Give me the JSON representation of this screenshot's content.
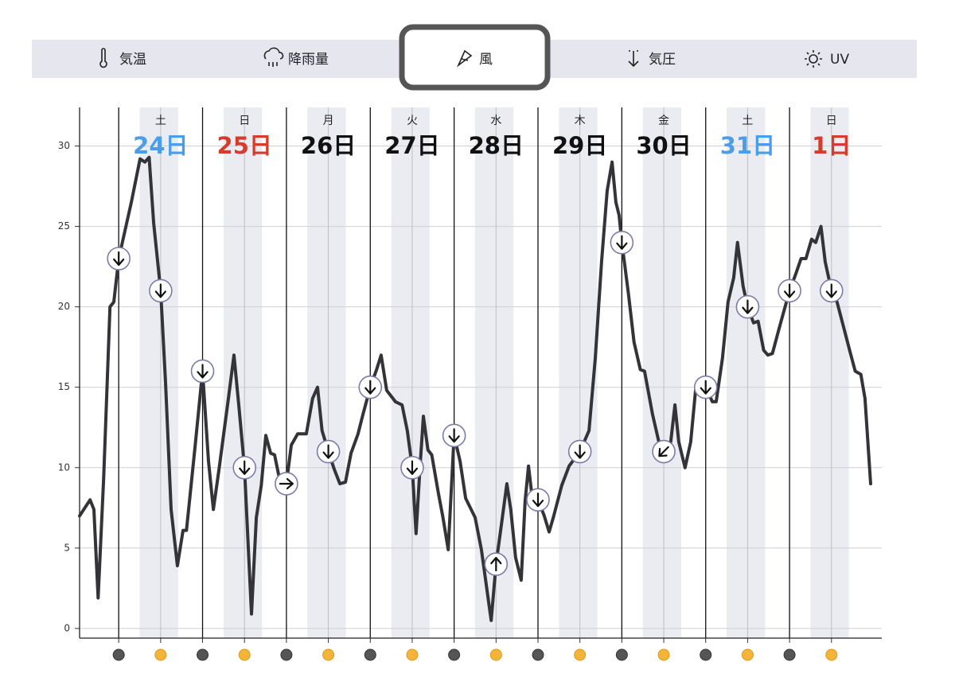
{
  "tabs": [
    {
      "label": "気温"
    },
    {
      "label": "降雨量"
    },
    {
      "label": "風"
    },
    {
      "label": "気圧"
    },
    {
      "label": "UV"
    }
  ],
  "selected_tab": 2,
  "chart_data": {
    "type": "line",
    "xlim": [
      -11.2,
      218.4
    ],
    "ylim": [
      -0.6,
      32.4
    ],
    "yticks": [
      0,
      5,
      10,
      15,
      20,
      25,
      30
    ],
    "grid": true,
    "day_lines": [
      0,
      24,
      48,
      72,
      96,
      120,
      144,
      168,
      192
    ],
    "noon_lines": [
      12,
      36,
      60,
      84,
      108,
      132,
      156,
      180,
      204
    ],
    "days": [
      {
        "weekday": "土",
        "date": "24日",
        "color": "#4a9de9"
      },
      {
        "weekday": "日",
        "date": "25日",
        "color": "#d63b2b"
      },
      {
        "weekday": "月",
        "date": "26日",
        "color": "#111111"
      },
      {
        "weekday": "火",
        "date": "27日",
        "color": "#111111"
      },
      {
        "weekday": "水",
        "date": "28日",
        "color": "#111111"
      },
      {
        "weekday": "木",
        "date": "29日",
        "color": "#111111"
      },
      {
        "weekday": "金",
        "date": "30日",
        "color": "#111111"
      },
      {
        "weekday": "土",
        "date": "31日",
        "color": "#4a9de9"
      },
      {
        "weekday": "日",
        "date": "1日",
        "color": "#d63b2b"
      }
    ],
    "line": {
      "color": "#333338",
      "x": [
        -11.2,
        -8.2,
        -7.1,
        -5.9,
        -4.3,
        -2.5,
        -1.4,
        0,
        3.6,
        6.1,
        7.5,
        8.7,
        10,
        12,
        13.4,
        15,
        16.8,
        18.4,
        19.4,
        21.9,
        24,
        25.7,
        27.1,
        28.7,
        31.4,
        33,
        34.4,
        36,
        38,
        39.4,
        40.8,
        42.1,
        43.5,
        44.6,
        46.2,
        48,
        49.4,
        51.2,
        53.7,
        55.5,
        56.9,
        58.2,
        60,
        61.7,
        63.3,
        64.9,
        66.5,
        68.5,
        69.9,
        72,
        73.8,
        75.1,
        76.7,
        79.2,
        81.1,
        82.6,
        84,
        85.1,
        86.2,
        87.2,
        88.5,
        89.6,
        91.5,
        92.8,
        94.3,
        96,
        97.7,
        99.3,
        102,
        103.8,
        105.4,
        106.6,
        108,
        109.5,
        111.1,
        112.2,
        113.6,
        115.2,
        116.3,
        117.3,
        118.2,
        120,
        121.8,
        123.2,
        124.5,
        126.8,
        128.9,
        132,
        134.6,
        136.4,
        138.2,
        139.8,
        141.2,
        142.3,
        143.2,
        144,
        145.9,
        147.5,
        149.3,
        150.5,
        152.8,
        154.6,
        156,
        158,
        159.2,
        160.3,
        162.1,
        163.7,
        165.1,
        168,
        169.9,
        171,
        172.8,
        174.4,
        176,
        177.1,
        178.7,
        180,
        181.7,
        183,
        184.6,
        185.8,
        187.1,
        189.2,
        192,
        193.7,
        195.3,
        196.7,
        198.3,
        199.5,
        201,
        202.2,
        204,
        205.6,
        207.4,
        209.2,
        210.8,
        212.4,
        213.6,
        215.2
      ],
      "values": [
        7,
        8,
        7.4,
        1.9,
        9.4,
        20,
        20.3,
        23,
        26.5,
        29.2,
        29,
        29.3,
        25.2,
        21,
        15.3,
        7.4,
        3.9,
        6.1,
        6.1,
        11.4,
        16,
        10.4,
        7.4,
        9.9,
        14.3,
        17,
        13.8,
        10,
        0.9,
        6.9,
        8.9,
        12,
        10.9,
        10.8,
        9.1,
        9,
        11.4,
        12.1,
        12.1,
        14.3,
        15,
        12.3,
        11,
        9.9,
        9,
        9.1,
        10.9,
        12.1,
        13.3,
        15,
        16.1,
        17,
        14.8,
        14.1,
        13.9,
        12.3,
        10,
        5.9,
        9.9,
        13.2,
        11.1,
        10.8,
        8.4,
        6.9,
        4.9,
        12,
        10.4,
        8.1,
        6.9,
        4.9,
        2.4,
        0.5,
        4,
        6.4,
        9,
        7.4,
        4.4,
        3,
        7.9,
        10.1,
        8.4,
        8,
        7,
        6,
        7,
        8.9,
        10.1,
        11,
        12.3,
        16.8,
        22.8,
        27.2,
        29,
        26.5,
        25.7,
        24,
        20.8,
        17.8,
        16.1,
        16,
        13.3,
        11.6,
        11,
        11.6,
        13.9,
        11.6,
        10,
        11.6,
        14.8,
        15,
        14.1,
        14.1,
        16.8,
        20.3,
        21.8,
        24,
        21.3,
        20,
        19,
        19.1,
        17.3,
        17,
        17.1,
        18.8,
        21,
        22,
        23,
        23,
        24.2,
        24,
        25,
        22.8,
        21,
        20.3,
        18.8,
        17.3,
        16,
        15.8,
        14.3,
        9
      ]
    },
    "arrows": {
      "x": [
        0,
        12,
        24,
        36,
        48,
        60,
        72,
        84,
        96,
        108,
        120,
        132,
        144,
        156,
        168,
        180,
        192,
        204
      ],
      "values": [
        23,
        21,
        16,
        10,
        9,
        11,
        15,
        10,
        12,
        4,
        8,
        11,
        24,
        11,
        15,
        20,
        21,
        21
      ],
      "direction": [
        180,
        180,
        180,
        180,
        90,
        180,
        180,
        180,
        180,
        0,
        180,
        180,
        180,
        225,
        180,
        180,
        180,
        180
      ]
    }
  }
}
